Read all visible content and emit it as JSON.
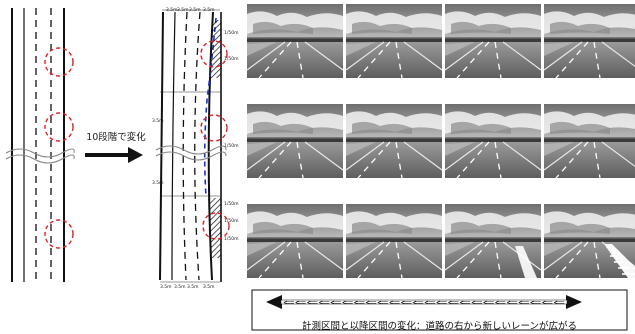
{
  "arrow_label": "10段階で変化",
  "caption": "計測区間と以降区間の変化：道路の右から新しいレーンが広がる",
  "arrow_fill_glyphs": "⇐⇐⇐⇐⇐⇐⇐⇐⇐⇐⇐⇐⇐⇐⇐⇐⇐⇐⇐⇐⇐⇐⇐⇐",
  "plan_top_labels": [
    "3.5m",
    "3.5m",
    "3.5m",
    "3.5m"
  ],
  "plan_bottom_labels": [
    "3.5m",
    "3.5m",
    "3.5m",
    "3.5m"
  ],
  "plan_side_labels": [
    "1/50m",
    "1/50m",
    "1/50m",
    "1/50m",
    "1/50m",
    "1/50m"
  ],
  "plan_left_labels": [
    "3.5m",
    "3.5m"
  ],
  "thumbnail_grid": {
    "rows": 3,
    "cols": 4
  },
  "colors": {
    "marker_circle": "#e02020",
    "new_lane_dash": "#2030d0",
    "ink": "#111111"
  }
}
